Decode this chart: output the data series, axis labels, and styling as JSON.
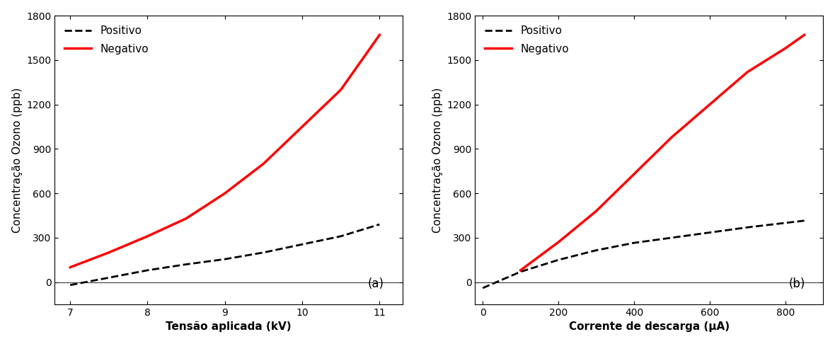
{
  "chart_a": {
    "title_label": "(a)",
    "xlabel": "Tensão aplicada (kV)",
    "ylabel": "Concentração Ozono (ppb)",
    "xlim": [
      6.8,
      11.3
    ],
    "ylim": [
      -150,
      1800
    ],
    "yticks": [
      0,
      300,
      600,
      900,
      1200,
      1500,
      1800
    ],
    "xticks": [
      7,
      8,
      9,
      10,
      11
    ],
    "positive_x": [
      7.0,
      7.5,
      8.0,
      8.5,
      9.0,
      9.5,
      10.0,
      10.5,
      11.0
    ],
    "positive_y": [
      -20,
      30,
      80,
      120,
      155,
      200,
      255,
      310,
      390
    ],
    "negative_x": [
      7.0,
      7.5,
      8.0,
      8.5,
      9.0,
      9.5,
      10.0,
      10.5,
      11.0
    ],
    "negative_y": [
      100,
      200,
      310,
      430,
      600,
      800,
      1050,
      1300,
      1670
    ]
  },
  "chart_b": {
    "title_label": "(b)",
    "xlabel": "Corrente de descarga (μA)",
    "ylabel": "Concentração Ozono (ppb)",
    "xlim": [
      -20,
      900
    ],
    "ylim": [
      -150,
      1800
    ],
    "yticks": [
      0,
      300,
      600,
      900,
      1200,
      1500,
      1800
    ],
    "xticks": [
      0,
      200,
      400,
      600,
      800
    ],
    "positive_x": [
      0,
      100,
      200,
      300,
      400,
      500,
      600,
      700,
      850
    ],
    "positive_y": [
      -40,
      70,
      150,
      215,
      265,
      300,
      335,
      370,
      415
    ],
    "negative_x": [
      100,
      200,
      300,
      400,
      500,
      600,
      700,
      800,
      850
    ],
    "negative_y": [
      80,
      270,
      480,
      730,
      980,
      1200,
      1420,
      1580,
      1670
    ]
  },
  "positive_color": "#000000",
  "negative_color": "#ff0000",
  "positive_style": "--",
  "negative_style": "-",
  "positive_linewidth": 2.0,
  "negative_linewidth": 2.5,
  "legend_positivo": "Positivo",
  "legend_negativo": "Negativo",
  "bg_color": "#ffffff",
  "font_size_label": 11,
  "font_size_tick": 10,
  "font_size_legend": 11,
  "font_size_annot": 12
}
